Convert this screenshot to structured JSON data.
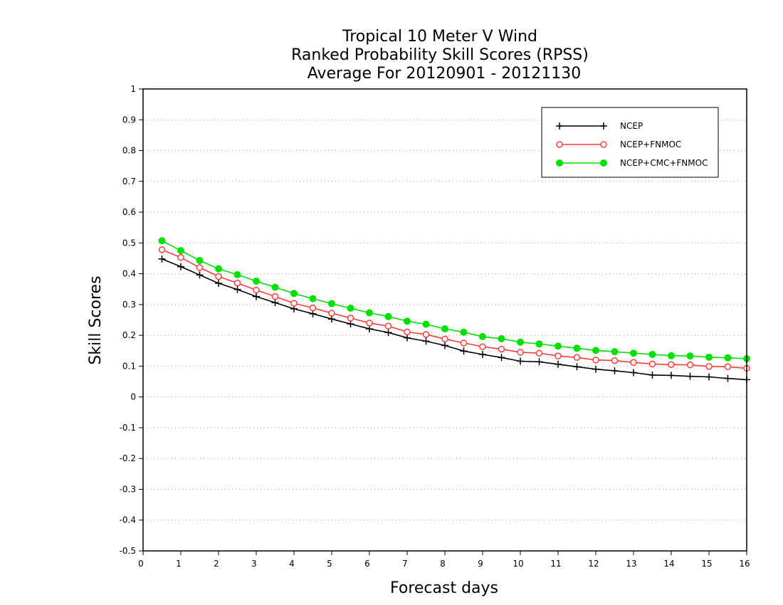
{
  "chart_data": {
    "type": "line",
    "title": [
      "Tropical 10 Meter V Wind",
      "Ranked Probability Skill Scores (RPSS)",
      "Average For 20120901 - 20121130"
    ],
    "xlabel": "Forecast days",
    "ylabel": "Skill Scores",
    "xlim": [
      0,
      16
    ],
    "ylim": [
      -0.5,
      1
    ],
    "xticks": [
      0,
      1,
      2,
      3,
      4,
      5,
      6,
      7,
      8,
      9,
      10,
      11,
      12,
      13,
      14,
      15,
      16
    ],
    "yticks": [
      -0.5,
      -0.4,
      -0.3,
      -0.2,
      -0.1,
      0,
      0.1,
      0.2,
      0.3,
      0.4,
      0.5,
      0.6,
      0.7,
      0.8,
      0.9,
      1
    ],
    "ytick_labels": [
      "-0.5",
      "-0.4",
      "-0.3",
      "-0.2",
      "-0.1",
      "0",
      "0.1",
      "0.2",
      "0.3",
      "0.4",
      "0.5",
      "0.6",
      "0.7",
      "0.8",
      "0.9",
      "1"
    ],
    "grid": "horizontal dotted",
    "legend_position": "top-right",
    "x": [
      0.5,
      1,
      1.5,
      2,
      2.5,
      3,
      3.5,
      4,
      4.5,
      5,
      5.5,
      6,
      6.5,
      7,
      7.5,
      8,
      8.5,
      9,
      9.5,
      10,
      10.5,
      11,
      11.5,
      12,
      12.5,
      13,
      13.5,
      14,
      14.5,
      15,
      15.5,
      16
    ],
    "series": [
      {
        "name": "NCEP",
        "color": "#000000",
        "marker": "plus",
        "values": [
          0.448,
          0.423,
          0.396,
          0.369,
          0.349,
          0.326,
          0.306,
          0.286,
          0.27,
          0.253,
          0.237,
          0.221,
          0.209,
          0.192,
          0.181,
          0.167,
          0.149,
          0.138,
          0.128,
          0.116,
          0.114,
          0.106,
          0.098,
          0.09,
          0.085,
          0.079,
          0.071,
          0.07,
          0.067,
          0.065,
          0.06,
          0.056
        ]
      },
      {
        "name": "NCEP+FNMOC",
        "color": "#ff3b3b",
        "marker": "open-circle",
        "values": [
          0.478,
          0.453,
          0.42,
          0.391,
          0.37,
          0.347,
          0.326,
          0.304,
          0.289,
          0.272,
          0.256,
          0.24,
          0.23,
          0.211,
          0.203,
          0.188,
          0.175,
          0.163,
          0.155,
          0.145,
          0.142,
          0.133,
          0.128,
          0.12,
          0.118,
          0.112,
          0.107,
          0.105,
          0.104,
          0.099,
          0.098,
          0.093
        ]
      },
      {
        "name": "NCEP+CMC+FNMOC",
        "color": "#00e100",
        "marker": "filled-circle",
        "values": [
          0.507,
          0.475,
          0.443,
          0.416,
          0.397,
          0.376,
          0.356,
          0.336,
          0.319,
          0.303,
          0.288,
          0.273,
          0.261,
          0.246,
          0.236,
          0.221,
          0.21,
          0.196,
          0.189,
          0.178,
          0.172,
          0.165,
          0.158,
          0.151,
          0.147,
          0.142,
          0.138,
          0.134,
          0.133,
          0.129,
          0.127,
          0.124
        ]
      }
    ]
  }
}
